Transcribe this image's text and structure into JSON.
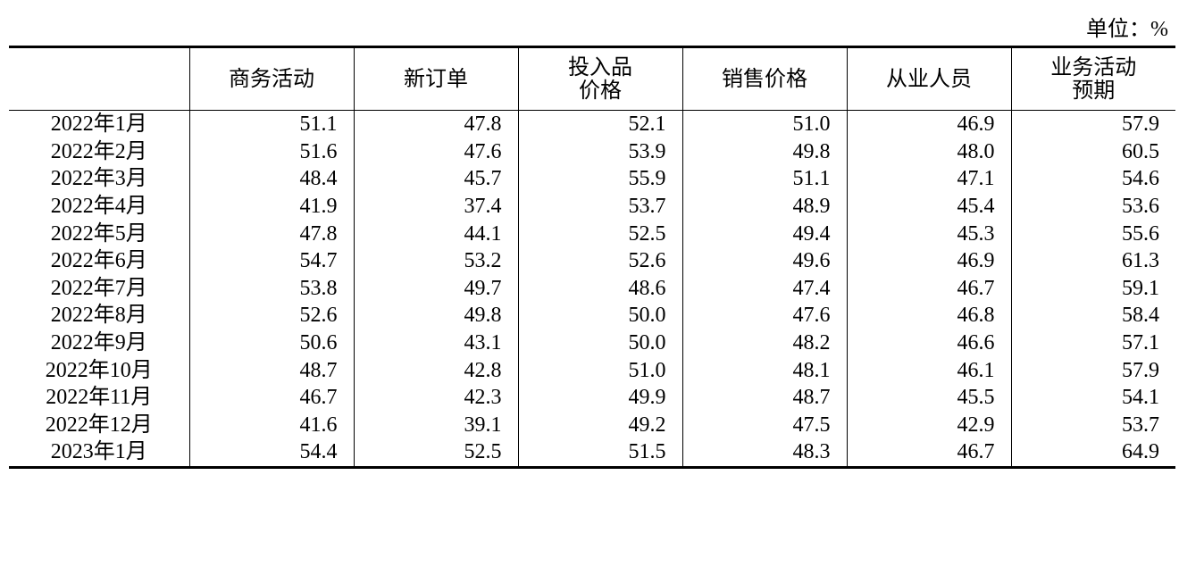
{
  "unit": "单位：%",
  "table": {
    "header": [
      [],
      [
        "商务活动"
      ],
      [
        "新订单"
      ],
      [
        "投入品",
        "价格"
      ],
      [
        "销售价格"
      ],
      [
        "从业人员"
      ],
      [
        "业务活动",
        "预期"
      ]
    ],
    "rows": [
      [
        "2022年1月",
        "51.1",
        "47.8",
        "52.1",
        "51.0",
        "46.9",
        "57.9"
      ],
      [
        "2022年2月",
        "51.6",
        "47.6",
        "53.9",
        "49.8",
        "48.0",
        "60.5"
      ],
      [
        "2022年3月",
        "48.4",
        "45.7",
        "55.9",
        "51.1",
        "47.1",
        "54.6"
      ],
      [
        "2022年4月",
        "41.9",
        "37.4",
        "53.7",
        "48.9",
        "45.4",
        "53.6"
      ],
      [
        "2022年5月",
        "47.8",
        "44.1",
        "52.5",
        "49.4",
        "45.3",
        "55.6"
      ],
      [
        "2022年6月",
        "54.7",
        "53.2",
        "52.6",
        "49.6",
        "46.9",
        "61.3"
      ],
      [
        "2022年7月",
        "53.8",
        "49.7",
        "48.6",
        "47.4",
        "46.7",
        "59.1"
      ],
      [
        "2022年8月",
        "52.6",
        "49.8",
        "50.0",
        "47.6",
        "46.8",
        "58.4"
      ],
      [
        "2022年9月",
        "50.6",
        "43.1",
        "50.0",
        "48.2",
        "46.6",
        "57.1"
      ],
      [
        "2022年10月",
        "48.7",
        "42.8",
        "51.0",
        "48.1",
        "46.1",
        "57.9"
      ],
      [
        "2022年11月",
        "46.7",
        "42.3",
        "49.9",
        "48.7",
        "45.5",
        "54.1"
      ],
      [
        "2022年12月",
        "41.6",
        "39.1",
        "49.2",
        "47.5",
        "42.9",
        "53.7"
      ],
      [
        "2023年1月",
        "54.4",
        "52.5",
        "51.5",
        "48.3",
        "46.7",
        "64.9"
      ]
    ]
  }
}
